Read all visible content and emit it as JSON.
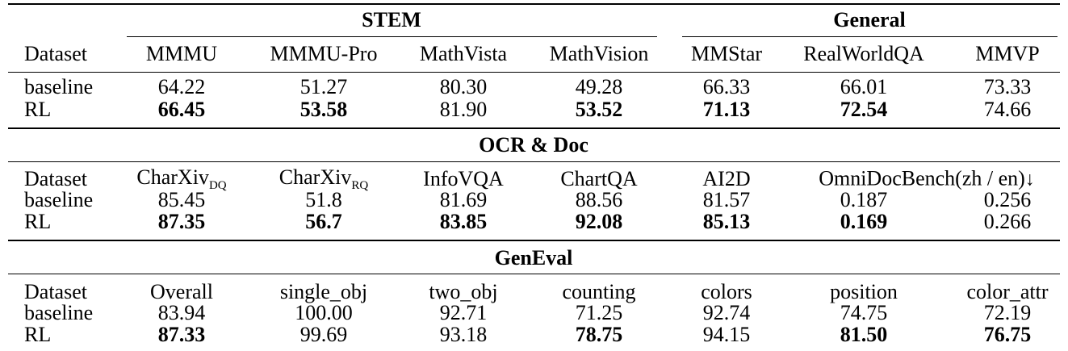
{
  "stem_general": {
    "group_labels": {
      "stem": "STEM",
      "general": "General"
    },
    "dataset_label": "Dataset",
    "columns": [
      "MMMU",
      "MMMU-Pro",
      "MathVista",
      "MathVision",
      "MMStar",
      "RealWorldQA",
      "MMVP"
    ],
    "rows": [
      {
        "label": "baseline",
        "values": [
          "64.22",
          "51.27",
          "80.30",
          "49.28",
          "66.33",
          "66.01",
          "73.33"
        ]
      },
      {
        "label": "RL",
        "values": [
          "66.45",
          "53.58",
          "81.90",
          "53.52",
          "71.13",
          "72.54",
          "74.66"
        ]
      }
    ]
  },
  "ocr_doc": {
    "title": "OCR & Doc",
    "dataset_label": "Dataset",
    "columns": [
      {
        "main": "CharXiv",
        "sub": "DQ"
      },
      {
        "main": "CharXiv",
        "sub": "RQ"
      },
      {
        "main": "InfoVQA",
        "sub": ""
      },
      {
        "main": "ChartQA",
        "sub": ""
      },
      {
        "main": "AI2D",
        "sub": ""
      }
    ],
    "omnidoc_label": "OmniDocBench(zh / en)",
    "omnidoc_arrow": "↓",
    "rows": [
      {
        "label": "baseline",
        "values": [
          "85.45",
          "51.8",
          "81.69",
          "88.56",
          "81.57",
          "0.187",
          "0.256"
        ]
      },
      {
        "label": "RL",
        "values": [
          "87.35",
          "56.7",
          "83.85",
          "92.08",
          "85.13",
          "0.169",
          "0.266"
        ]
      }
    ]
  },
  "geneval": {
    "title": "GenEval",
    "dataset_label": "Dataset",
    "columns": [
      "Overall",
      "single_obj",
      "two_obj",
      "counting",
      "colors",
      "position",
      "color_attr"
    ],
    "rows": [
      {
        "label": "baseline",
        "values": [
          "83.94",
          "100.00",
          "92.71",
          "71.25",
          "92.74",
          "74.75",
          "72.19"
        ]
      },
      {
        "label": "RL",
        "values": [
          "87.33",
          "99.69",
          "93.18",
          "78.75",
          "94.15",
          "81.50",
          "76.75"
        ]
      }
    ]
  }
}
